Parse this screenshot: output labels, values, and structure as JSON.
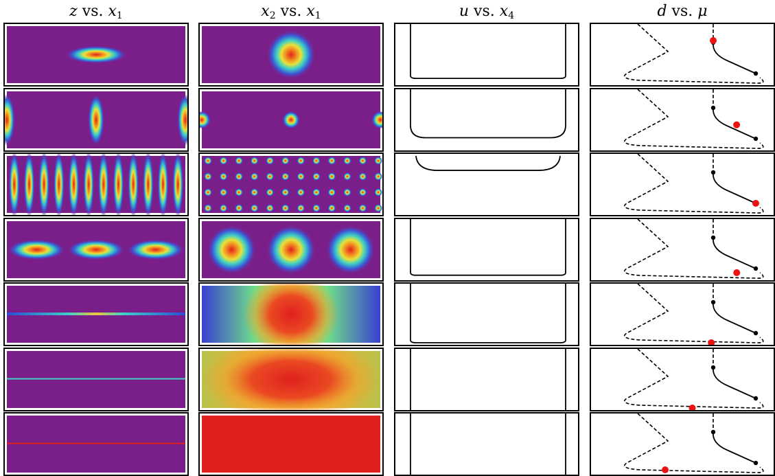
{
  "columns": [
    {
      "var": "z",
      "vs": "vs.",
      "against": "x",
      "against_sub": "1"
    },
    {
      "var": "x",
      "var_sub": "2",
      "vs": "vs.",
      "against": "x",
      "against_sub": "1"
    },
    {
      "var": "u",
      "vs": "vs.",
      "against": "x",
      "against_sub": "4"
    },
    {
      "var": "d",
      "vs": "vs.",
      "against": "μ"
    }
  ],
  "colors": {
    "background": "#7a1f8a",
    "peak": "#e0201f",
    "line": "#000000",
    "marker_current": "#ee1111",
    "marker_bifurcation": "#000000"
  },
  "colormap": "rainbow (purple→blue→cyan→yellow→red)",
  "rows": [
    {
      "z": {
        "kind": "blob",
        "n": 1,
        "shape": "horizontal-ellipse"
      },
      "x2": {
        "kind": "blob",
        "n": 1
      },
      "u": {
        "depth": 0.92
      },
      "d": {
        "marker_t": 0.15
      }
    },
    {
      "z": {
        "kind": "blob",
        "n": 3,
        "shape": "vertical-ellipse",
        "edges": true
      },
      "x2": {
        "kind": "blob",
        "n": 3,
        "small": true,
        "edges": true
      },
      "u": {
        "depth": 0.82
      },
      "d": {
        "marker_t": 0.55
      }
    },
    {
      "z": {
        "kind": "stripes",
        "n": 12
      },
      "x2": {
        "kind": "lattice",
        "cols": 12,
        "rows": 4
      },
      "u": {
        "depth": 0.28
      },
      "d": {
        "marker_t": 1.0
      }
    },
    {
      "z": {
        "kind": "blob",
        "n": 3,
        "shape": "horizontal-ellipse"
      },
      "x2": {
        "kind": "blob",
        "n": 3
      },
      "u": {
        "depth": 0.95
      },
      "d": {
        "marker_t": 1.15
      }
    },
    {
      "z": {
        "kind": "line",
        "color": "mixed"
      },
      "x2": {
        "kind": "wide-blob"
      },
      "u": {
        "depth": 1.0
      },
      "d": {
        "marker_t": 1.35
      }
    },
    {
      "z": {
        "kind": "line",
        "color": "cyan"
      },
      "x2": {
        "kind": "wider-blob"
      },
      "u": {
        "depth": 1.05
      },
      "d": {
        "marker_t": 1.5
      }
    },
    {
      "z": {
        "kind": "line",
        "color": "red"
      },
      "x2": {
        "kind": "flat"
      },
      "u": {
        "depth": 1.05
      },
      "d": {
        "marker_t": 1.85
      }
    }
  ]
}
